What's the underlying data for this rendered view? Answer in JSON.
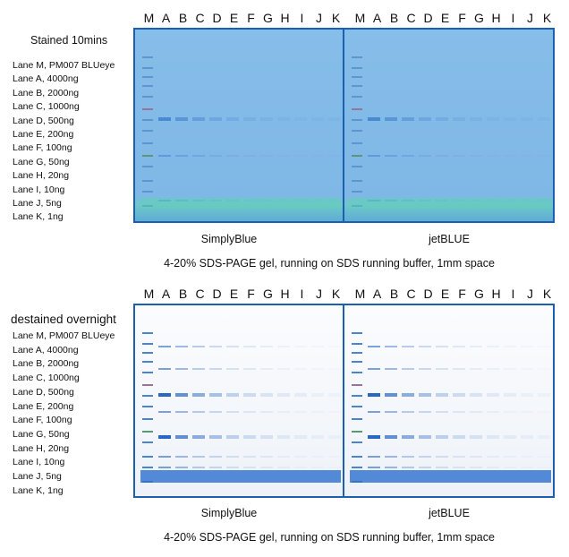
{
  "lane_letters": [
    "M",
    "A",
    "B",
    "C",
    "D",
    "E",
    "F",
    "G",
    "H",
    "I",
    "J",
    "K"
  ],
  "top_panel": {
    "title": "Stained 10mins",
    "left_gel_label": "SimplyBlue",
    "right_gel_label": "jetBLUE",
    "caption": "4-20% SDS-PAGE gel, running on SDS running buffer, 1mm space"
  },
  "bottom_panel": {
    "title": "destained overnight",
    "left_gel_label": "SimplyBlue",
    "right_gel_label": "jetBLUE",
    "caption": "4-20% SDS-PAGE gel, running on SDS running buffer, 1mm space"
  },
  "lanes_legend": [
    "Lane M, PM007 BLUeye",
    "Lane A, 4000ng",
    "Lane B, 2000ng",
    "Lane C, 1000ng",
    "Lane D,  500ng",
    "Lane E,  200ng",
    "Lane F,  100ng",
    "Lane G,  50ng",
    "Lane H,  20ng",
    "Lane I,  10ng",
    "Lane J,  5ng",
    "Lane K,  1ng"
  ],
  "colors": {
    "border": "#1a5fb0",
    "stained_gel": "#7fb6e6",
    "destained_gel": "#f4f6fa",
    "band": "#1d5fc0"
  }
}
